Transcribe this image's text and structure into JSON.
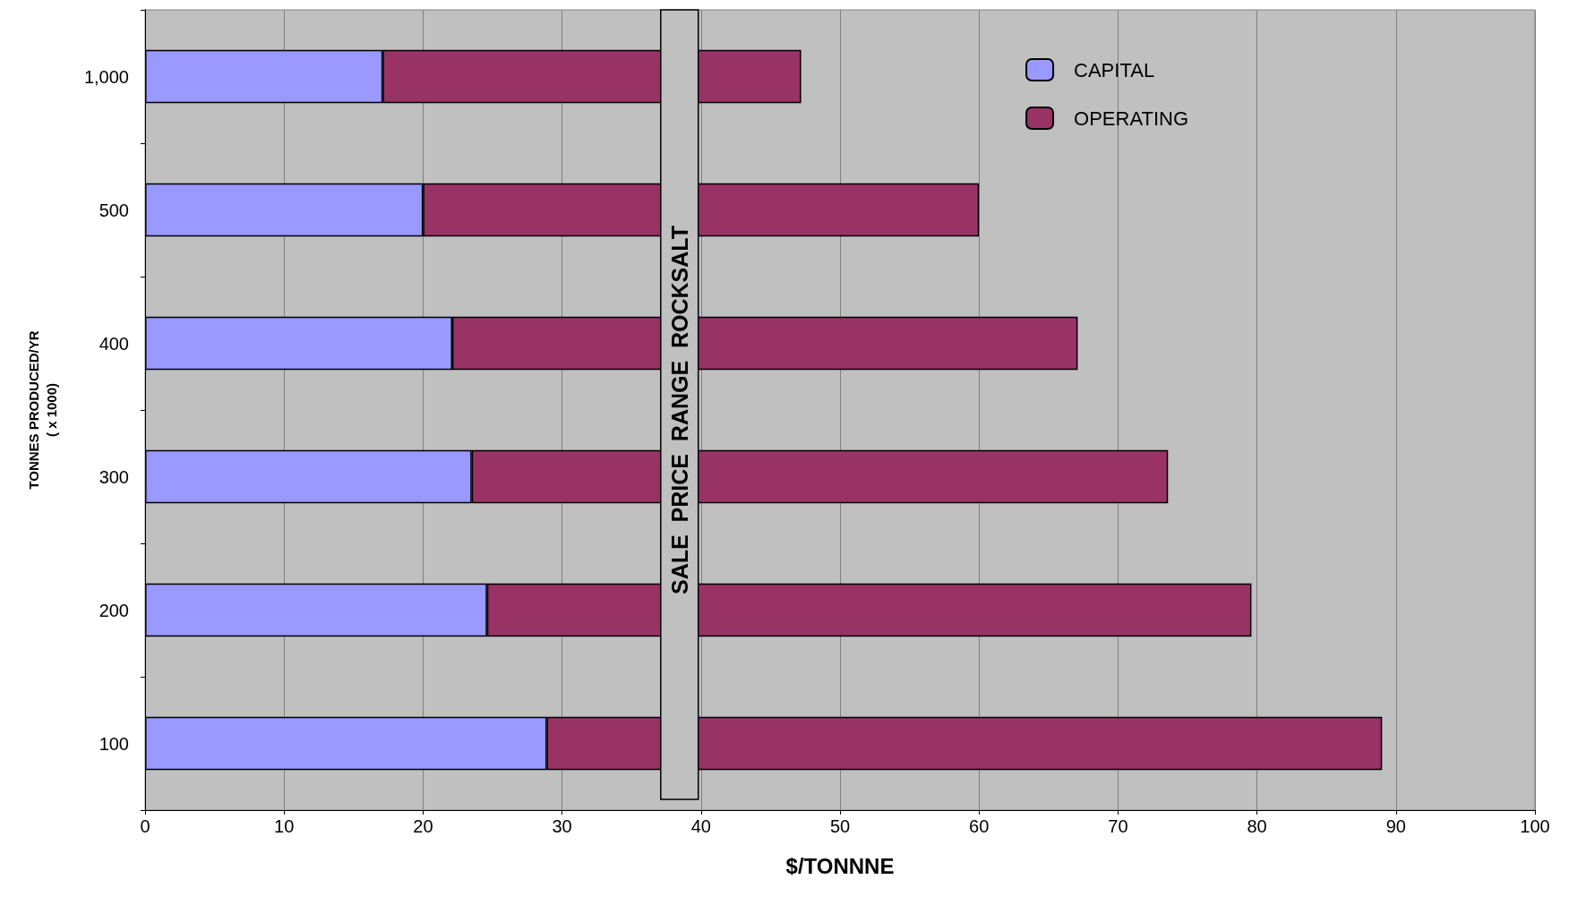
{
  "chart_data": {
    "type": "bar",
    "orientation": "horizontal",
    "stacked": true,
    "xlabel": "$/TONNNE",
    "ylabel": "TONNES PRODUCED/YR\n( x 1000)",
    "categories": [
      "1,000",
      "500",
      "400",
      "300",
      "200",
      "100"
    ],
    "series": [
      {
        "name": "CAPITAL",
        "color": "#9999ff",
        "values": [
          17.1,
          20,
          22.1,
          23.5,
          24.6,
          28.9
        ]
      },
      {
        "name": "OPERATING",
        "color": "#993366",
        "values": [
          30.1,
          40,
          45,
          50.1,
          55,
          60.1
        ]
      }
    ],
    "xlim": [
      0,
      100
    ],
    "xticks": [
      0,
      10,
      20,
      30,
      40,
      50,
      60,
      70,
      80,
      90,
      100
    ],
    "grid": "x",
    "legend": "top right",
    "bands": [
      {
        "axis": "x",
        "from": 37.1,
        "to": 39.8,
        "label": "SALE  PRICE  RANGE  ROCKSALT",
        "color": "#c0c0c0"
      }
    ]
  }
}
